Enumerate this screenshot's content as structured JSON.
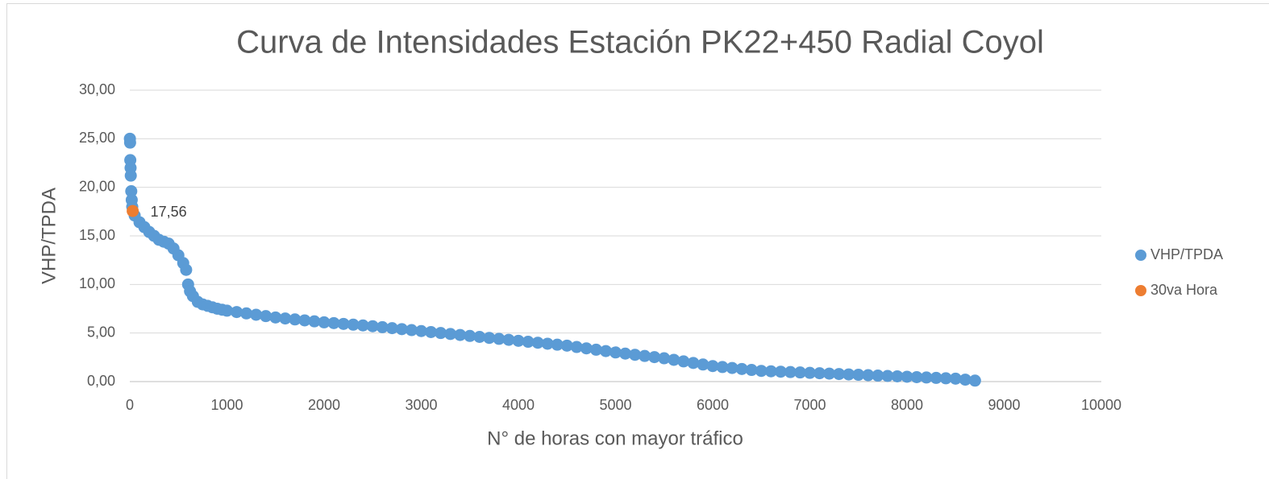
{
  "chart_data": {
    "type": "scatter",
    "title": "Curva de Intensidades Estación PK22+450 Radial Coyol",
    "x_label": "N° de horas con mayor tráfico",
    "y_label": "VHP/TPDA",
    "xlim": [
      0,
      10000
    ],
    "xticks": [
      0,
      1000,
      2000,
      3000,
      4000,
      5000,
      6000,
      7000,
      8000,
      9000,
      10000
    ],
    "ylim": [
      0,
      30
    ],
    "yticks": [
      {
        "value": 0,
        "label": "0,00"
      },
      {
        "value": 5,
        "label": "5,00"
      },
      {
        "value": 10,
        "label": "10,00"
      },
      {
        "value": 15,
        "label": "15,00"
      },
      {
        "value": 20,
        "label": "20,00"
      },
      {
        "value": 25,
        "label": "25,00"
      },
      {
        "value": 30,
        "label": "30,00"
      }
    ],
    "grid": true,
    "legend": "right",
    "series": [
      {
        "name": "VHP/TPDA",
        "color": "#5b9bd5",
        "x": [
          1,
          3,
          5,
          8,
          10,
          15,
          20,
          25,
          50,
          100,
          150,
          200,
          250,
          300,
          350,
          400,
          450,
          500,
          550,
          580,
          600,
          620,
          650,
          700,
          750,
          800,
          850,
          900,
          950,
          1000,
          1100,
          1200,
          1300,
          1400,
          1500,
          1600,
          1700,
          1800,
          1900,
          2000,
          2100,
          2200,
          2300,
          2400,
          2500,
          2600,
          2700,
          2800,
          2900,
          3000,
          3100,
          3200,
          3300,
          3400,
          3500,
          3600,
          3700,
          3800,
          3900,
          4000,
          4100,
          4200,
          4300,
          4400,
          4500,
          4600,
          4700,
          4800,
          4900,
          5000,
          5100,
          5200,
          5300,
          5400,
          5500,
          5600,
          5700,
          5800,
          5900,
          6000,
          6100,
          6200,
          6300,
          6400,
          6500,
          6600,
          6700,
          6800,
          6900,
          7000,
          7100,
          7200,
          7300,
          7400,
          7500,
          7600,
          7700,
          7800,
          7900,
          8000,
          8100,
          8200,
          8300,
          8400,
          8500,
          8600,
          8700
        ],
        "values": [
          25.0,
          24.6,
          22.8,
          22.0,
          21.2,
          19.6,
          18.7,
          18.0,
          17.1,
          16.4,
          15.9,
          15.4,
          15.0,
          14.6,
          14.4,
          14.2,
          13.7,
          13.0,
          12.2,
          11.5,
          10.0,
          9.3,
          8.8,
          8.2,
          7.95,
          7.8,
          7.65,
          7.5,
          7.4,
          7.3,
          7.16,
          7.02,
          6.88,
          6.74,
          6.6,
          6.5,
          6.4,
          6.3,
          6.2,
          6.1,
          6.02,
          5.94,
          5.86,
          5.78,
          5.7,
          5.6,
          5.5,
          5.4,
          5.3,
          5.2,
          5.1,
          5.0,
          4.9,
          4.8,
          4.7,
          4.6,
          4.5,
          4.4,
          4.3,
          4.2,
          4.1,
          4.0,
          3.9,
          3.8,
          3.7,
          3.56,
          3.42,
          3.28,
          3.14,
          3.0,
          2.88,
          2.76,
          2.64,
          2.52,
          2.4,
          2.24,
          2.08,
          1.92,
          1.76,
          1.6,
          1.5,
          1.4,
          1.3,
          1.2,
          1.1,
          1.06,
          1.02,
          0.98,
          0.94,
          0.9,
          0.86,
          0.82,
          0.78,
          0.74,
          0.7,
          0.66,
          0.62,
          0.58,
          0.54,
          0.5,
          0.46,
          0.42,
          0.38,
          0.34,
          0.3,
          0.2,
          0.1
        ]
      },
      {
        "name": "30va Hora",
        "color": "#ed7d31",
        "x": [
          30
        ],
        "values": [
          17.56
        ],
        "value_labels": [
          "17,56"
        ]
      }
    ]
  }
}
